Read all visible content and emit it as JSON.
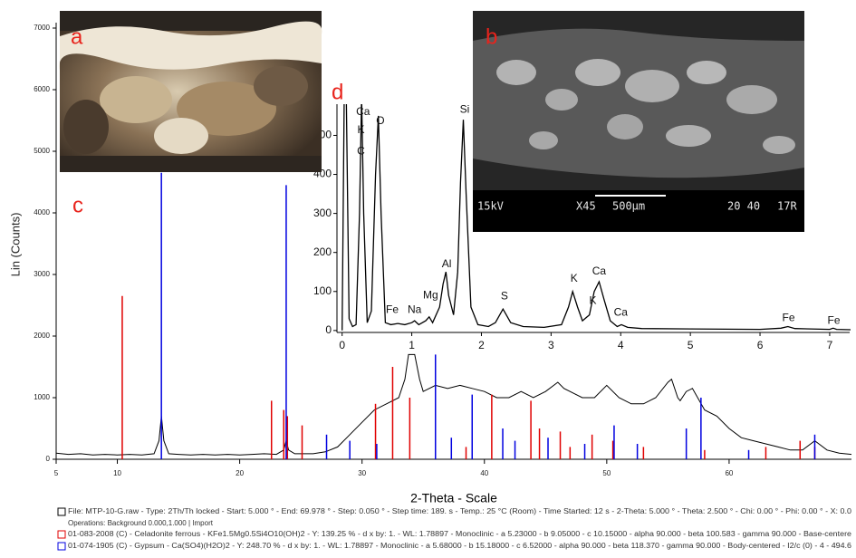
{
  "panel_labels": [
    "a",
    "b",
    "c",
    "d"
  ],
  "sem_caption": [
    "15kV",
    "X45",
    "500µm",
    "20 40",
    "17R"
  ],
  "chart_data": [
    {
      "type": "line",
      "y_label": "Lin (Counts)",
      "x_label": "2-Theta - Scale",
      "operations": "Operations: Background 0.000,1.000 | Import",
      "xlim": [
        5,
        70
      ],
      "ylim": [
        0,
        7000
      ],
      "xticks": [
        5,
        10,
        20,
        30,
        40,
        50,
        60
      ],
      "yticks": [
        0,
        1000,
        2000,
        3000,
        4000,
        5000,
        6000,
        7000
      ],
      "series": [
        {
          "name": "File: MTP-10-G.raw - Type: 2Th/Th locked - Start: 5.000 ° - End: 69.978 ° - Step: 0.050 ° - Step time: 189. s - Temp.: 25 °C (Room) - Time Started: 12 s - 2-Theta: 5.000 ° - Theta: 2.500 ° - Chi: 0.00 ° - Phi: 0.00 ° - X: 0.0",
          "color": "#000000",
          "x": [
            5,
            6,
            7,
            8,
            9,
            10,
            11,
            12,
            13,
            13.4,
            13.6,
            13.8,
            14.2,
            15,
            16,
            17,
            18,
            19,
            20,
            21,
            22,
            23,
            23.6,
            23.8,
            24,
            24.5,
            25,
            26,
            27,
            28,
            29,
            30,
            31,
            32,
            33,
            33.5,
            33.8,
            34.3,
            34.7,
            35,
            36,
            37,
            38,
            39,
            40,
            41,
            42,
            43,
            44,
            45,
            46,
            46.5,
            47,
            48,
            49,
            50,
            51,
            52,
            53,
            54,
            55,
            55.3,
            55.8,
            56,
            56.5,
            57,
            58,
            59,
            60,
            61,
            62,
            63,
            64,
            65,
            66,
            67,
            68,
            69,
            70
          ],
          "values": [
            100,
            80,
            90,
            70,
            80,
            70,
            80,
            70,
            90,
            300,
            700,
            300,
            90,
            80,
            70,
            80,
            70,
            80,
            70,
            80,
            90,
            80,
            150,
            300,
            150,
            90,
            90,
            90,
            120,
            200,
            400,
            600,
            800,
            900,
            1000,
            1300,
            1700,
            1700,
            1300,
            1100,
            1200,
            1150,
            1200,
            1150,
            1100,
            1000,
            1000,
            1100,
            1000,
            1100,
            1250,
            1150,
            1100,
            1000,
            1000,
            1200,
            1000,
            900,
            900,
            1000,
            1250,
            1300,
            1000,
            950,
            1100,
            1150,
            800,
            700,
            500,
            350,
            300,
            250,
            200,
            150,
            150,
            300,
            150,
            100,
            80
          ]
        },
        {
          "name": "01-083-2008 (C) - Celadonite ferrous - KFe1.5Mg0.5Si4O10(OH)2 - Y: 139.25 % - d x by: 1. - WL: 1.78897 - Monoclinic - a 5.23000 - b 9.05000 - c 10.15000 - alpha 90.000 - beta 100.583 - gamma 90.000 - Base-centere",
          "type": "stick",
          "color": "#e00000",
          "x": [
            10.4,
            22.6,
            23.6,
            23.9,
            25.1,
            31.1,
            32.5,
            33.9,
            36,
            38.5,
            40.6,
            43.8,
            44.5,
            46.2,
            47,
            48.8,
            50.5,
            53,
            58,
            63,
            65.8,
            67
          ],
          "values": [
            2650,
            950,
            800,
            700,
            550,
            900,
            1500,
            1000,
            300,
            200,
            1050,
            950,
            500,
            450,
            200,
            400,
            300,
            200,
            150,
            200,
            300,
            200
          ]
        },
        {
          "name": "01-074-1905 (C) - Gypsum - Ca(SO4)(H2O)2 - Y: 248.70 % - d x by: 1. - WL: 1.78897 - Monoclinic - a 5.68000 - b 15.18000 - c 6.52000 - alpha 90.000 - beta 118.370 - gamma 90.000 - Body-centered - I2/c (0) - 4 - 494.6",
          "type": "stick",
          "color": "#0000e0",
          "x": [
            13.6,
            23.8,
            27.1,
            29,
            31.2,
            36,
            37.3,
            39,
            41.5,
            42.5,
            45.2,
            48.2,
            50.6,
            52.5,
            56.5,
            57.7,
            61.6,
            67
          ],
          "values": [
            4650,
            4450,
            400,
            300,
            250,
            1700,
            350,
            1050,
            500,
            300,
            350,
            250,
            550,
            250,
            500,
            1000,
            150,
            400
          ]
        }
      ]
    },
    {
      "type": "line",
      "xlim": [
        -0.1,
        7.3
      ],
      "ylim": [
        -5,
        580
      ],
      "xticks": [
        0,
        1,
        2,
        3,
        4,
        5,
        6,
        7
      ],
      "yticks": [
        0,
        100,
        200,
        300,
        400,
        500
      ],
      "series": [
        {
          "color": "#000000",
          "x": [
            0,
            0.03,
            0.06,
            0.1,
            0.15,
            0.2,
            0.25,
            0.28,
            0.31,
            0.36,
            0.42,
            0.48,
            0.52,
            0.56,
            0.62,
            0.7,
            0.8,
            0.9,
            1.0,
            1.04,
            1.1,
            1.2,
            1.25,
            1.3,
            1.4,
            1.45,
            1.49,
            1.53,
            1.6,
            1.66,
            1.7,
            1.74,
            1.78,
            1.85,
            1.95,
            2.1,
            2.2,
            2.31,
            2.42,
            2.6,
            2.9,
            3.15,
            3.25,
            3.31,
            3.38,
            3.45,
            3.55,
            3.62,
            3.69,
            3.76,
            3.85,
            3.95,
            4.01,
            4.1,
            4.3,
            5,
            6,
            6.3,
            6.4,
            6.5,
            7,
            7.05,
            7.1,
            7.3
          ],
          "values": [
            0,
            600,
            600,
            30,
            10,
            15,
            300,
            600,
            300,
            20,
            50,
            400,
            550,
            300,
            20,
            15,
            18,
            15,
            20,
            25,
            15,
            25,
            35,
            20,
            60,
            120,
            150,
            90,
            40,
            150,
            380,
            540,
            350,
            60,
            15,
            10,
            20,
            55,
            20,
            10,
            8,
            15,
            60,
            100,
            60,
            25,
            40,
            100,
            125,
            80,
            25,
            10,
            15,
            8,
            5,
            4,
            3,
            6,
            10,
            5,
            3,
            6,
            3,
            2
          ]
        }
      ],
      "annotations": [
        {
          "text": "Ca",
          "x": 0.3,
          "y": 560
        },
        {
          "text": "K",
          "x": 0.27,
          "y": 513
        },
        {
          "text": "C",
          "x": 0.27,
          "y": 459
        },
        {
          "text": "O",
          "x": 0.55,
          "y": 536
        },
        {
          "text": "Si",
          "x": 1.76,
          "y": 565
        },
        {
          "text": "Al",
          "x": 1.5,
          "y": 169
        },
        {
          "text": "Mg",
          "x": 1.27,
          "y": 89
        },
        {
          "text": "Na",
          "x": 1.04,
          "y": 52
        },
        {
          "text": "Fe",
          "x": 0.72,
          "y": 52
        },
        {
          "text": "S",
          "x": 2.33,
          "y": 87
        },
        {
          "text": "K",
          "x": 3.33,
          "y": 132
        },
        {
          "text": "K",
          "x": 3.6,
          "y": 75
        },
        {
          "text": "Ca",
          "x": 3.69,
          "y": 151
        },
        {
          "text": "Ca",
          "x": 4.0,
          "y": 45
        },
        {
          "text": "Fe",
          "x": 6.41,
          "y": 31
        },
        {
          "text": "Fe",
          "x": 7.06,
          "y": 24
        }
      ]
    }
  ]
}
